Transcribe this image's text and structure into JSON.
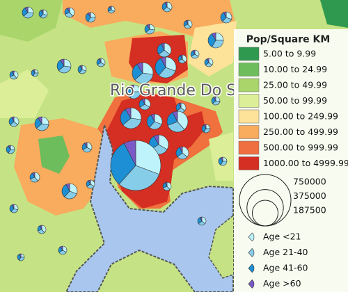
{
  "map": {
    "label": "Rio Grande Do S"
  },
  "legend": {
    "title": "Pop/Square KM",
    "classes": [
      {
        "label": "5.00 to 9.99",
        "color": "#2f9a4f"
      },
      {
        "label": "10.00 to 24.99",
        "color": "#6dbd5c"
      },
      {
        "label": "25.00 to 49.99",
        "color": "#a9d56b"
      },
      {
        "label": "50.00 to 99.99",
        "color": "#dcef98"
      },
      {
        "label": "100.00 to 249.99",
        "color": "#fde29a"
      },
      {
        "label": "250.00 to 499.99",
        "color": "#f9ab5e"
      },
      {
        "label": "500.00 to 999.99",
        "color": "#ef6f40"
      },
      {
        "label": "1000.00 to 4999.99",
        "color": "#d52e22"
      }
    ],
    "sizes": [
      750000,
      375000,
      187500
    ],
    "ages": [
      {
        "label": "Age <21",
        "color": "#bff3fc"
      },
      {
        "label": "Age 21-40",
        "color": "#86cdea"
      },
      {
        "label": "Age 41-60",
        "color": "#1d8fd5"
      },
      {
        "label": "Age >60",
        "color": "#7a5ac6"
      }
    ]
  }
}
